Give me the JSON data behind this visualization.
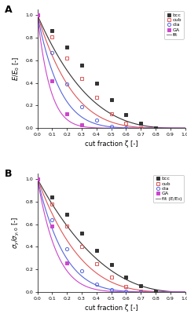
{
  "panel_A": {
    "title": "A",
    "xlabel": "cut fraction ζ [-]",
    "ylabel_latex": "$E/E_0$ [-]",
    "xlim": [
      0,
      1.0
    ],
    "ylim": [
      0,
      1.05
    ],
    "series": {
      "bcc": {
        "x": [
          0.0,
          0.1,
          0.2,
          0.3,
          0.4,
          0.5,
          0.6,
          0.7,
          0.8
        ],
        "y": [
          1.0,
          0.86,
          0.72,
          0.56,
          0.4,
          0.25,
          0.12,
          0.04,
          0.005
        ],
        "color": "#333333",
        "marker": "s",
        "markersize": 3.0,
        "fillstyle": "full"
      },
      "cub": {
        "x": [
          0.0,
          0.1,
          0.2,
          0.3,
          0.4,
          0.5,
          0.6,
          0.7
        ],
        "y": [
          1.0,
          0.81,
          0.62,
          0.44,
          0.27,
          0.13,
          0.04,
          0.005
        ],
        "color": "#e05555",
        "marker": "s",
        "markersize": 3.0,
        "fillstyle": "none"
      },
      "dia": {
        "x": [
          0.0,
          0.1,
          0.2,
          0.3,
          0.4,
          0.5,
          0.6
        ],
        "y": [
          1.0,
          0.67,
          0.39,
          0.19,
          0.07,
          0.015,
          0.002
        ],
        "color": "#5566dd",
        "marker": "o",
        "markersize": 3.0,
        "fillstyle": "none"
      },
      "GA": {
        "x": [
          0.0,
          0.1,
          0.2,
          0.3
        ],
        "y": [
          1.0,
          0.42,
          0.13,
          0.03
        ],
        "color": "#cc44cc",
        "marker": "s",
        "markersize": 3.0,
        "fillstyle": "full"
      }
    },
    "fit_colors": {
      "bcc": "#333333",
      "cub": "#e05555",
      "dia": "#5566dd",
      "GA": "#cc44cc"
    },
    "fit_exponents": {
      "bcc": 3.0,
      "cub": 4.2,
      "dia": 6.5,
      "GA": 11.5
    }
  },
  "panel_B": {
    "title": "B",
    "xlabel": "cut fraction ζ [-]",
    "ylabel_latex": "$\\sigma_y/\\sigma_{y,0}$ [-]",
    "xlim": [
      0,
      1.0
    ],
    "ylim": [
      0,
      1.05
    ],
    "series": {
      "bcc": {
        "x": [
          0.0,
          0.1,
          0.2,
          0.3,
          0.4,
          0.5,
          0.6,
          0.7,
          0.8
        ],
        "y": [
          1.0,
          0.84,
          0.69,
          0.52,
          0.37,
          0.24,
          0.13,
          0.055,
          0.01
        ],
        "color": "#333333",
        "marker": "s",
        "markersize": 3.0,
        "fillstyle": "full"
      },
      "cub": {
        "x": [
          0.0,
          0.1,
          0.2,
          0.3,
          0.4,
          0.5,
          0.6,
          0.7
        ],
        "y": [
          1.0,
          0.78,
          0.58,
          0.4,
          0.25,
          0.13,
          0.05,
          0.01
        ],
        "color": "#e05555",
        "marker": "s",
        "markersize": 3.0,
        "fillstyle": "none"
      },
      "dia": {
        "x": [
          0.0,
          0.1,
          0.2,
          0.3,
          0.4,
          0.5,
          0.6,
          0.7
        ],
        "y": [
          1.0,
          0.64,
          0.38,
          0.19,
          0.07,
          0.02,
          0.005,
          0.001
        ],
        "color": "#5566dd",
        "marker": "o",
        "markersize": 3.0,
        "fillstyle": "none"
      },
      "GA": {
        "x": [
          0.0,
          0.1,
          0.2
        ],
        "y": [
          1.0,
          0.58,
          0.26
        ],
        "color": "#cc44cc",
        "marker": "s",
        "markersize": 3.0,
        "fillstyle": "full"
      }
    },
    "fit_colors": {
      "bcc": "#333333",
      "cub": "#e05555",
      "dia": "#5566dd",
      "GA": "#cc44cc"
    },
    "fit_exponents": {
      "bcc": 2.4,
      "cub": 3.5,
      "dia": 5.5,
      "GA": 7.5
    }
  },
  "legend_A": [
    "bcc",
    "cub",
    "dia",
    "GA",
    "fit"
  ],
  "legend_B": [
    "bcc",
    "cub",
    "dia",
    "GA",
    "fit (E/E₀)"
  ],
  "fit_line_color": "#888888"
}
